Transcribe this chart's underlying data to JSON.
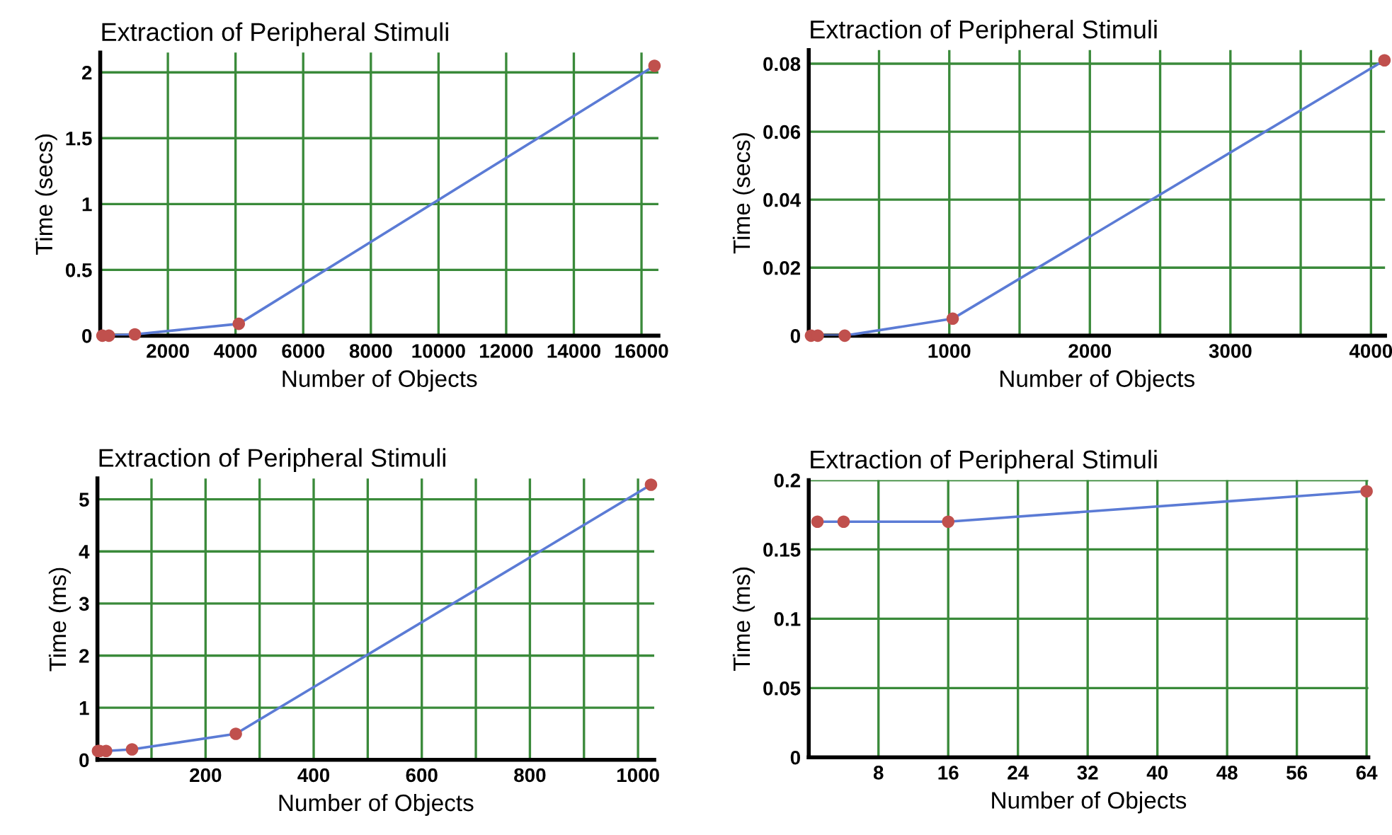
{
  "chart_data": [
    {
      "type": "line",
      "title": "Extraction of Peripheral Stimuli",
      "xlabel": "Number of Objects",
      "ylabel": "Time (secs)",
      "x": [
        64,
        256,
        1024,
        4096,
        16384
      ],
      "series": [
        {
          "color": "#5b7bd5",
          "colors": [
            "#c0504d",
            "#c0504d",
            "#c0504d",
            "#c0504d",
            "#c0504d"
          ],
          "values": [
            0,
            0,
            0.01,
            0.09,
            2.05
          ]
        }
      ],
      "xlim": [
        0,
        16500
      ],
      "xticks": [
        2000,
        4000,
        6000,
        8000,
        10000,
        12000,
        14000,
        16000
      ],
      "ylim": [
        0,
        2.15
      ],
      "yticks": [
        0,
        0.5,
        1,
        1.5,
        2
      ],
      "grid": true,
      "marker": "circle"
    },
    {
      "type": "line",
      "title": "Extraction of Peripheral Stimuli",
      "xlabel": "Number of Objects",
      "ylabel": "Time (secs)",
      "x": [
        16,
        64,
        256,
        1024,
        4096
      ],
      "series": [
        {
          "color": "#5b7bd5",
          "colors": [
            "#c0504d",
            "#c0504d",
            "#c0504d",
            "#c0504d",
            "#c0504d"
          ],
          "values": [
            0,
            0,
            0,
            0.005,
            0.081
          ]
        }
      ],
      "xlim": [
        0,
        4100
      ],
      "xticks": [
        {
          "value": 500,
          "label": null
        },
        1000,
        {
          "value": 1500,
          "label": null
        },
        2000,
        {
          "value": 2500,
          "label": null
        },
        3000,
        {
          "value": 3500,
          "label": null
        },
        4000
      ],
      "ylim": [
        0,
        0.084
      ],
      "yticks": [
        0,
        0.02,
        0.04,
        0.06,
        0.08
      ],
      "grid": true,
      "marker": "circle"
    },
    {
      "type": "line",
      "title": "Extraction of Peripheral Stimuli",
      "xlabel": "Number of Objects",
      "ylabel": "Time (ms)",
      "x": [
        1,
        4,
        16,
        64,
        256,
        1024
      ],
      "series": [
        {
          "color": "#5b7bd5",
          "colors": [
            "#c0504d",
            "#c0504d",
            "#c0504d",
            "#c0504d",
            "#c0504d",
            "#c0504d"
          ],
          "values": [
            0.17,
            0.17,
            0.17,
            0.2,
            0.5,
            5.28
          ]
        }
      ],
      "xlim": [
        0,
        1030
      ],
      "xticks": [
        {
          "value": 100,
          "label": null
        },
        200,
        {
          "value": 300,
          "label": null
        },
        400,
        {
          "value": 500,
          "label": null
        },
        600,
        {
          "value": 700,
          "label": null
        },
        800,
        {
          "value": 900,
          "label": null
        },
        1000
      ],
      "ylim": [
        0,
        5.4
      ],
      "yticks": [
        0,
        1,
        2,
        3,
        4,
        5
      ],
      "grid": true,
      "marker": "circle"
    },
    {
      "type": "line",
      "title": "Extraction of Peripheral Stimuli",
      "xlabel": "Number of Objects",
      "ylabel": "Time (ms)",
      "x": [
        1,
        4,
        16,
        64
      ],
      "series": [
        {
          "color": "#5b7bd5",
          "colors": [
            "#c0504d",
            "#c0504d",
            "#c0504d",
            "#c0504d"
          ],
          "values": [
            0.17,
            0.17,
            0.17,
            0.192
          ]
        }
      ],
      "xlim": [
        0,
        64.2
      ],
      "xticks": [
        8,
        16,
        24,
        32,
        40,
        48,
        56,
        64
      ],
      "ylim": [
        0,
        0.2
      ],
      "yticks": [
        0,
        0.05,
        0.1,
        0.15,
        0.2
      ],
      "grid": true,
      "marker": "circle"
    }
  ]
}
